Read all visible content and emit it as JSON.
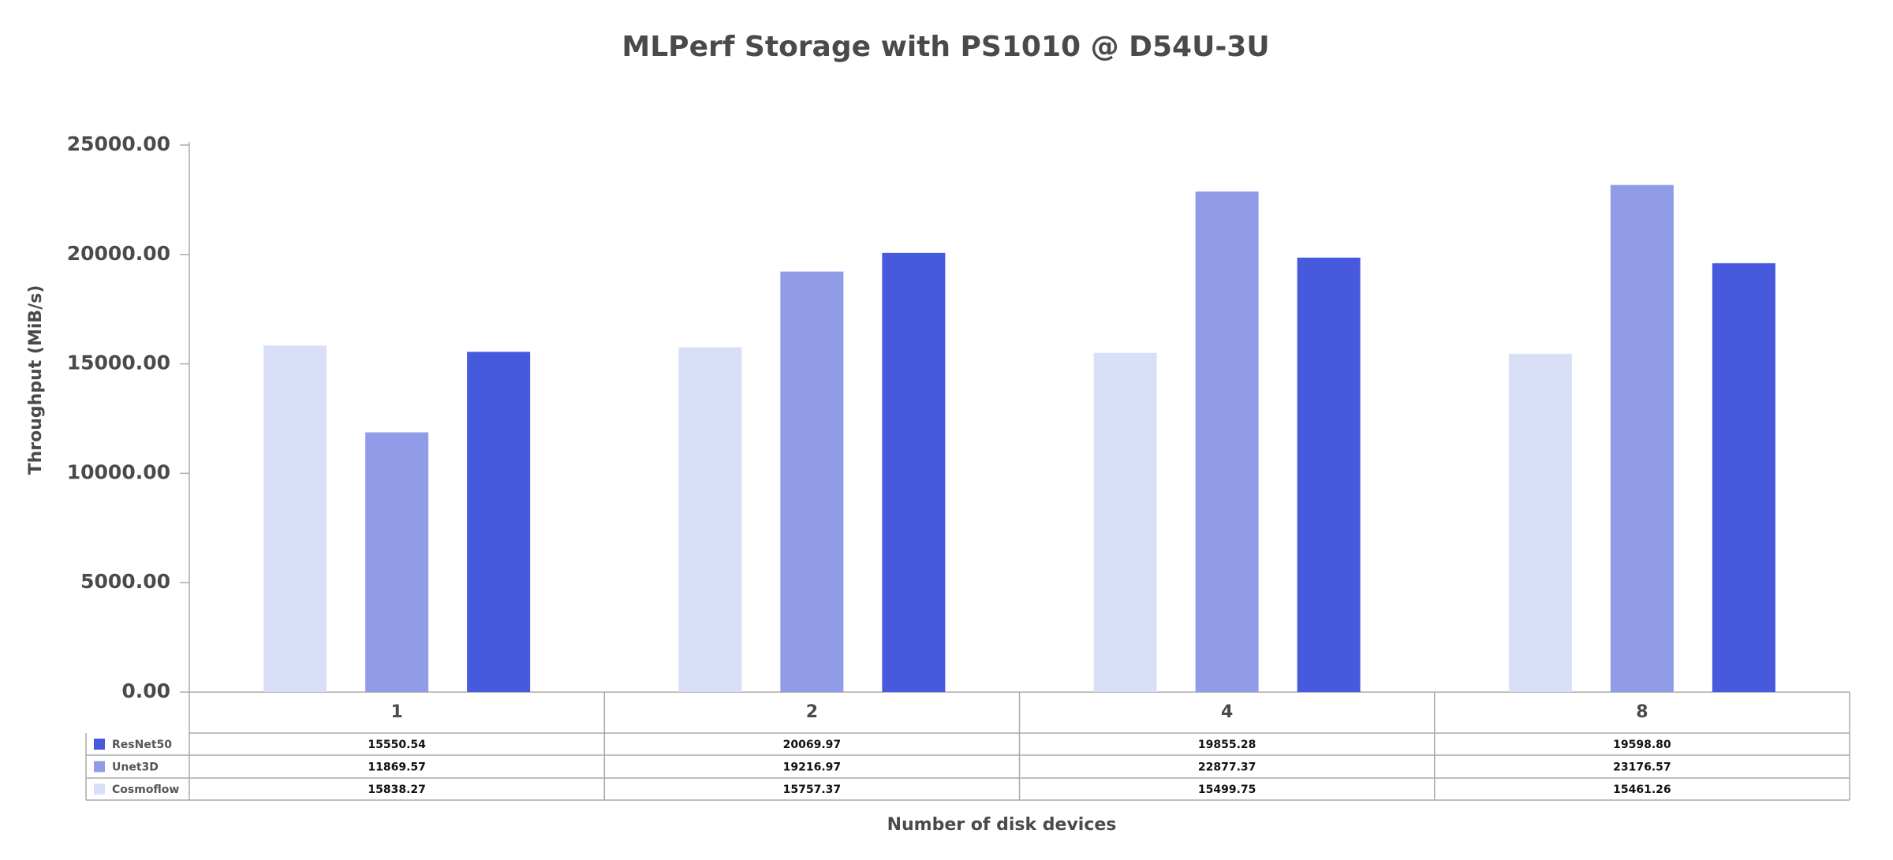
{
  "chart_data": {
    "type": "bar",
    "title": "MLPerf Storage with PS1010 @ D54U-3U",
    "x_label": "Number of disk devices",
    "y_label": "Throughput (MiB/s)",
    "categories": [
      "1",
      "2",
      "4",
      "8"
    ],
    "series": [
      {
        "name": "ResNet50",
        "color": "#4759dc",
        "values": [
          15550.54,
          20069.97,
          19855.28,
          19598.8
        ],
        "value_labels": [
          "15550.54",
          "20069.97",
          "19855.28",
          "19598.80"
        ]
      },
      {
        "name": "Unet3D",
        "color": "#919ce9",
        "values": [
          11869.57,
          19216.97,
          22877.37,
          23176.57
        ],
        "value_labels": [
          "11869.57",
          "19216.97",
          "22877.37",
          "23176.57"
        ]
      },
      {
        "name": "Cosmoflow",
        "color": "#dadff8",
        "values": [
          15838.27,
          15757.37,
          15499.75,
          15461.26
        ],
        "value_labels": [
          "15838.27",
          "15757.37",
          "15499.75",
          "15461.26"
        ]
      }
    ],
    "ylim": [
      0,
      25000
    ],
    "yticks": [
      {
        "value": 0,
        "label": "0.00"
      },
      {
        "value": 5000,
        "label": "5000.00"
      },
      {
        "value": 10000,
        "label": "10000.00"
      },
      {
        "value": 15000,
        "label": "15000.00"
      },
      {
        "value": 20000,
        "label": "20000.00"
      },
      {
        "value": 25000,
        "label": "25000.00"
      }
    ]
  }
}
